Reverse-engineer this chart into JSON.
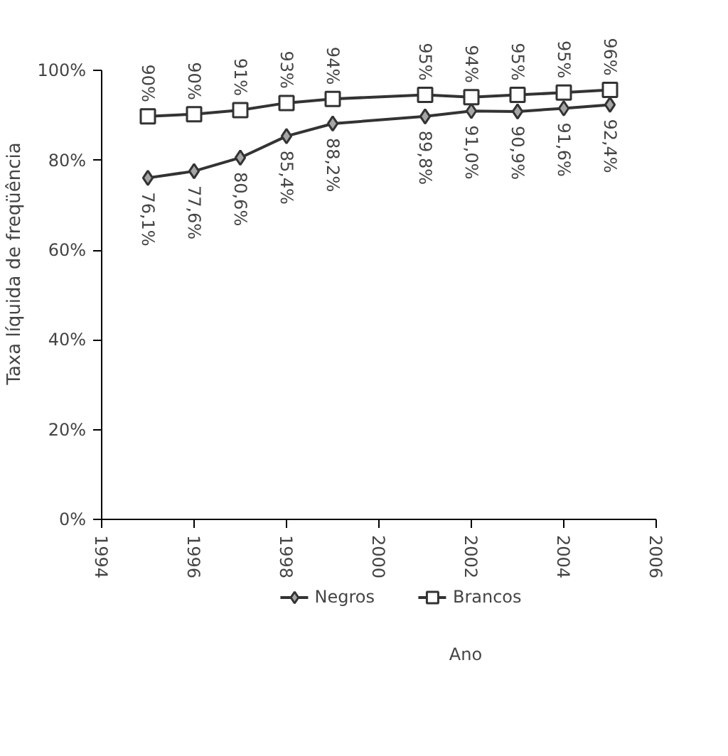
{
  "chart_data": {
    "type": "line",
    "xlabel": "Ano",
    "ylabel": "Taxa líquida de freqüência",
    "x": [
      1995,
      1996,
      1997,
      1998,
      1999,
      2001,
      2002,
      2003,
      2004,
      2005
    ],
    "xlim": [
      1994,
      2006
    ],
    "xticks": [
      1994,
      1996,
      1998,
      2000,
      2002,
      2004,
      2006
    ],
    "ylim": [
      0,
      100
    ],
    "yticks": [
      {
        "value": 0,
        "label": "0%"
      },
      {
        "value": 20,
        "label": "20%"
      },
      {
        "value": 40,
        "label": "40%"
      },
      {
        "value": 60,
        "label": "60%"
      },
      {
        "value": 80,
        "label": "80%"
      },
      {
        "value": 100,
        "label": "100%"
      }
    ],
    "grid": false,
    "legend": "bottom",
    "line_style": "solid",
    "series": [
      {
        "name": "Negros",
        "color": "#333333",
        "marker": "diamond",
        "values": [
          76.1,
          77.6,
          80.6,
          85.4,
          88.2,
          89.8,
          91.0,
          90.9,
          91.6,
          92.4
        ],
        "value_labels": [
          "76,1%",
          "77,6%",
          "80,6%",
          "85,4%",
          "88,2%",
          "89,8%",
          "91,0%",
          "90,9%",
          "91,6%",
          "92,4%"
        ]
      },
      {
        "name": "Brancos",
        "color": "#333333",
        "marker": "square",
        "values": [
          89.8,
          90.3,
          91.2,
          92.8,
          93.7,
          94.6,
          94.1,
          94.6,
          95.1,
          95.7
        ],
        "value_labels": [
          "90%",
          "90%",
          "91%",
          "93%",
          "94%",
          "95%",
          "94%",
          "95%",
          "95%",
          "96%"
        ]
      }
    ]
  }
}
